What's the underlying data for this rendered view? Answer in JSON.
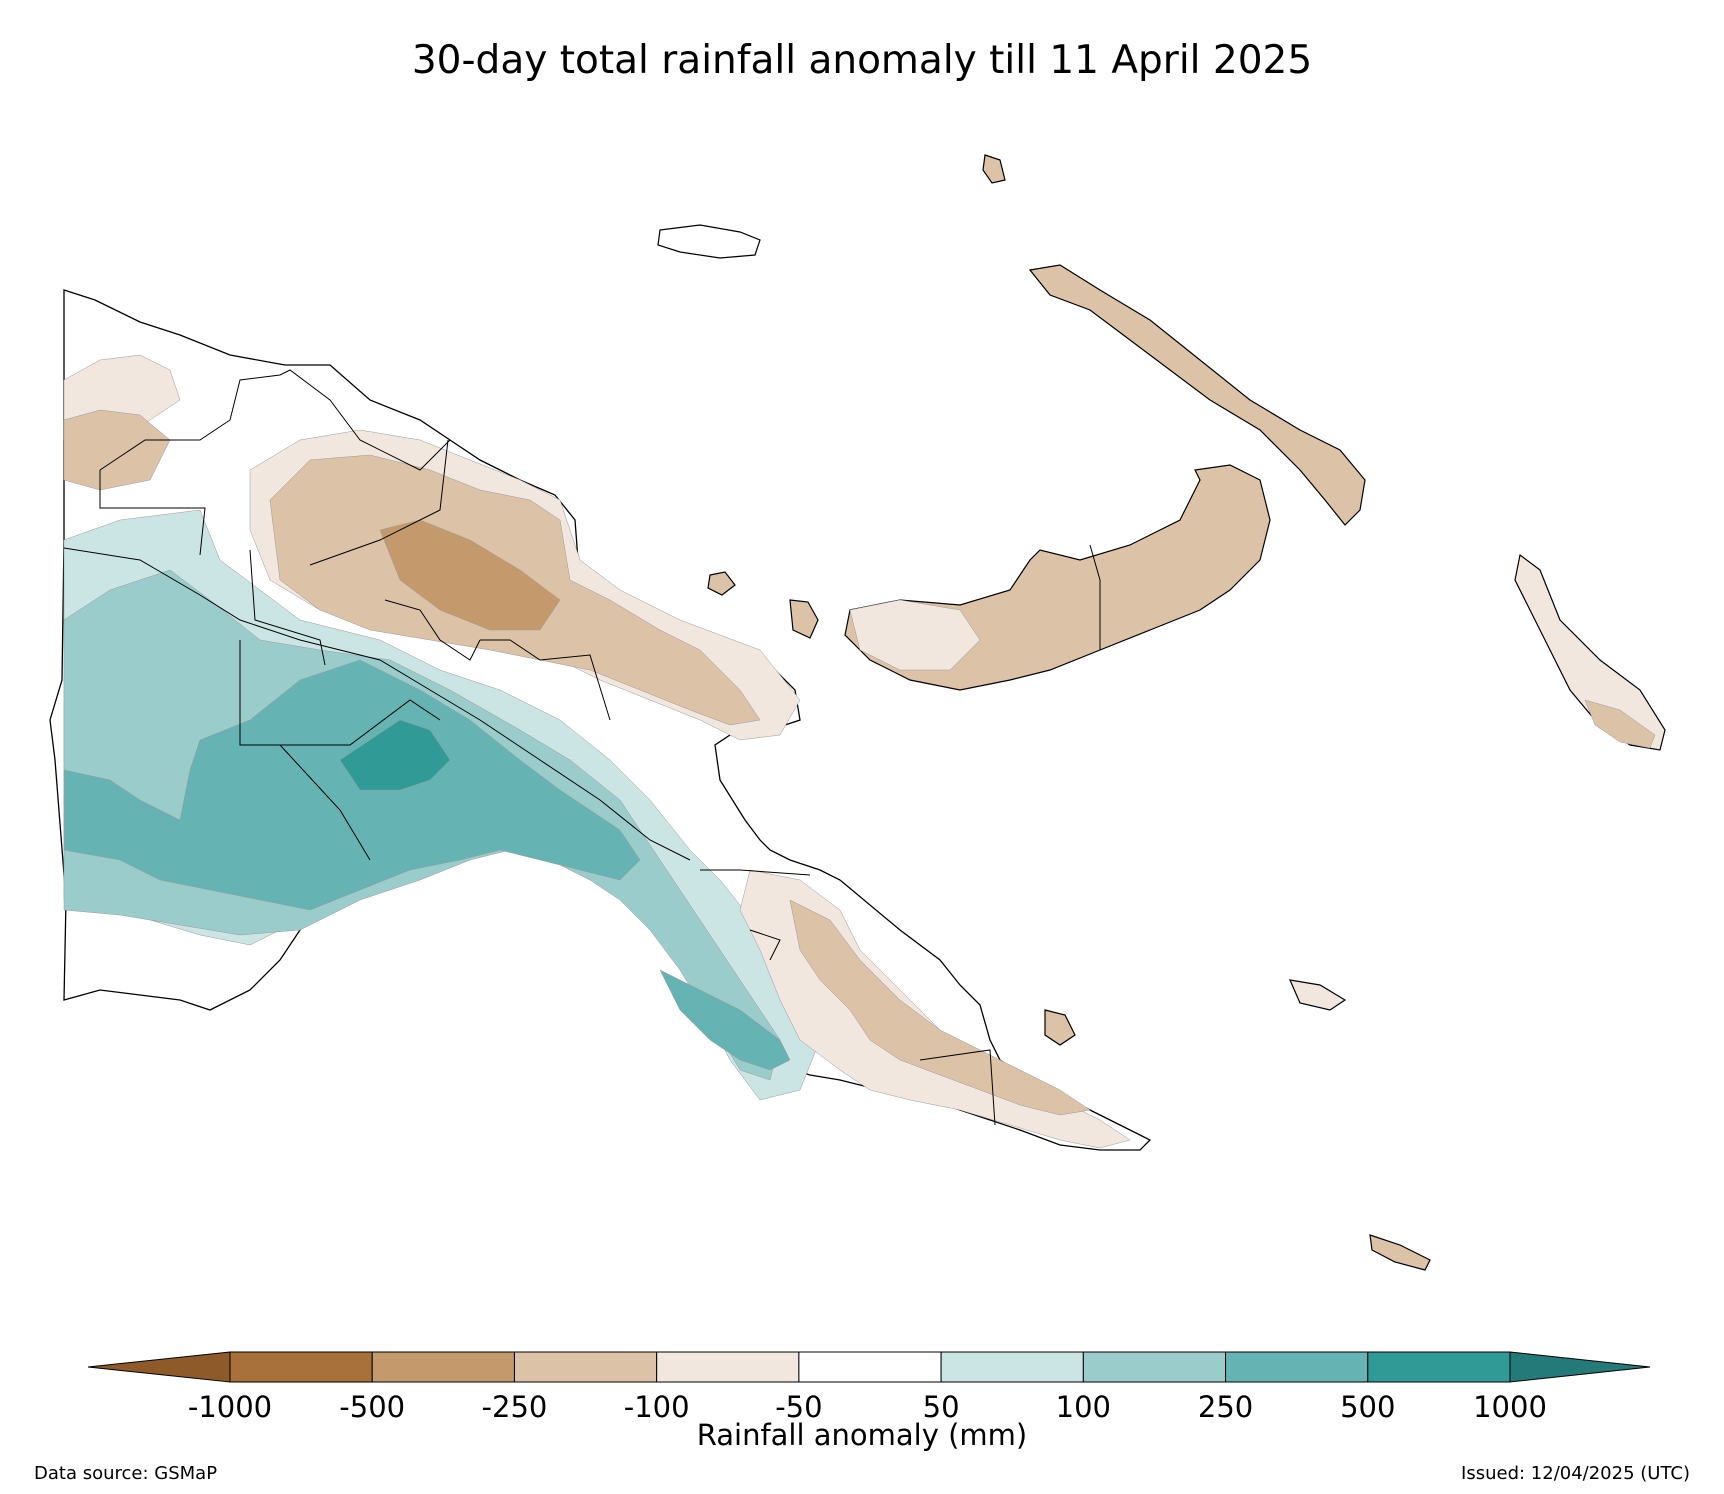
{
  "title": "30-day total rainfall anomaly till 11 April 2025",
  "colorbar": {
    "label": "Rainfall anomaly (mm)",
    "ticks": [
      "-1000",
      "-500",
      "-250",
      "-100",
      "-50",
      "50",
      "100",
      "250",
      "500",
      "1000"
    ],
    "colors": [
      "#a8703a",
      "#c49a6d",
      "#dcc3a8",
      "#f1e7df",
      "#ffffff",
      "#cbe5e5",
      "#9bcccc",
      "#66b3b3",
      "#2f9a96"
    ],
    "under_color": "#8f5a2a",
    "over_color": "#247a78"
  },
  "map_colors": {
    "dry_heavy": "#c49a6d",
    "dry_moderate": "#dcc3a8",
    "dry_light": "#f1e7df",
    "wet_light": "#cbe5e5",
    "wet_moderate": "#9bcccc",
    "wet_heavy": "#66b3b3",
    "wet_extreme": "#2f9a96"
  },
  "footer": {
    "source": "Data source: GSMaP",
    "issued": "Issued: 12/04/2025 (UTC)"
  }
}
